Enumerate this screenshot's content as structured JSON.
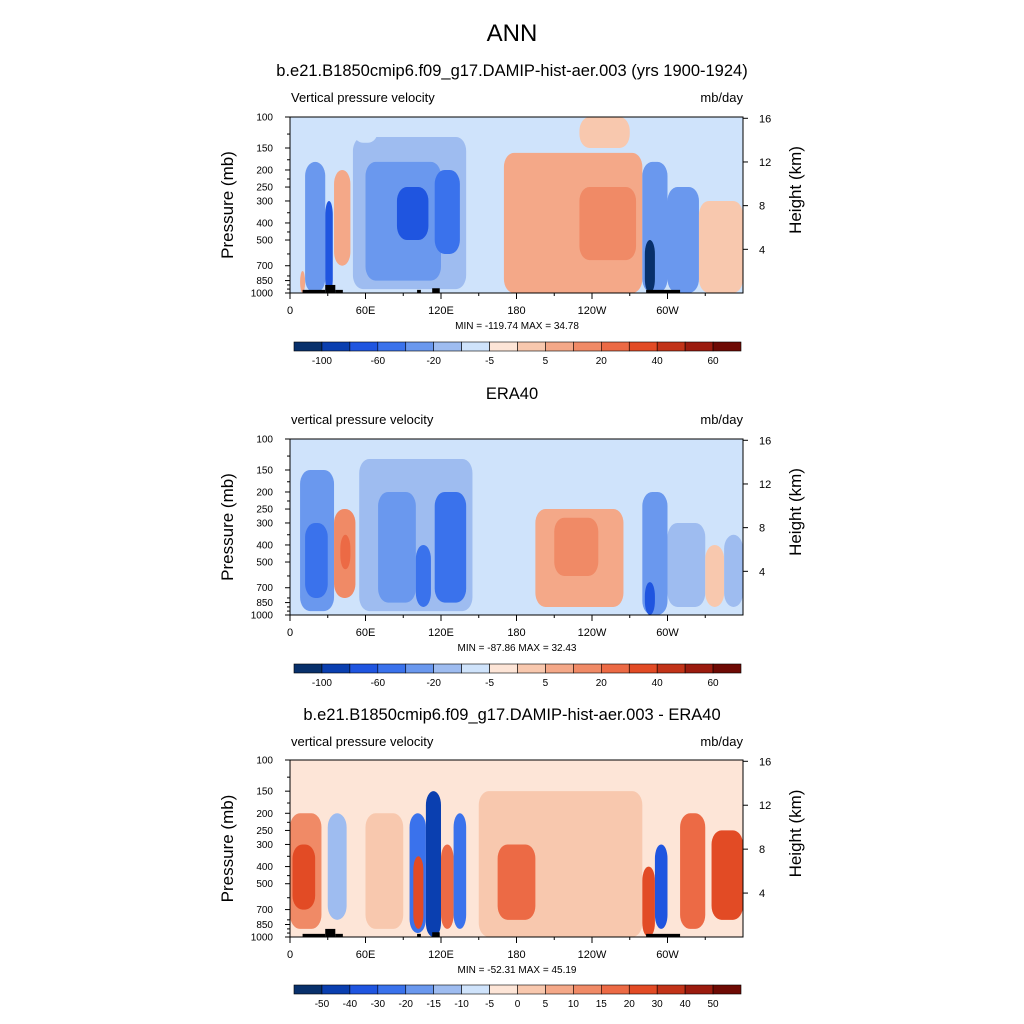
{
  "title": "ANN",
  "colors": {
    "negative": [
      "#08306b",
      "#0a3fb0",
      "#1f55e0",
      "#3a72ec",
      "#6a98ee",
      "#9ebcf0",
      "#cfe3fb"
    ],
    "positive": [
      "#fde5d7",
      "#f8c8ae",
      "#f4a888",
      "#f08a66",
      "#ec6a45",
      "#e24b25",
      "#c23318",
      "#9b1b0e",
      "#6e0a04"
    ],
    "land": "#000000"
  },
  "chart_data": [
    {
      "type": "heatmap",
      "name": "model",
      "title": "b.e21.B1850cmip6.f09_g17.DAMIP-hist-aer.003 (yrs 1900-1924)",
      "variable_label": "Vertical pressure velocity",
      "units": "mb/day",
      "ylabel": "Pressure (mb)",
      "ylabel_right": "Height (km)",
      "x_ticks": [
        "0",
        "60E",
        "120E",
        "180",
        "120W",
        "60W"
      ],
      "y_ticks": [
        "100",
        "150",
        "200",
        "250",
        "300",
        "400",
        "500",
        "700",
        "850",
        "1000"
      ],
      "height_ticks": [
        "4",
        "8",
        "12",
        "16"
      ],
      "xlim_deg": [
        0,
        360
      ],
      "ylim_mb": [
        1000,
        100
      ],
      "min": -119.74,
      "max": 34.78,
      "min_max_text": "MIN = -119.74  MAX =  34.78",
      "colorbar_labels": [
        "-100",
        "-60",
        "-20",
        "-5",
        "5",
        "20",
        "40",
        "60"
      ],
      "features": [
        {
          "lon": [
            8,
            12
          ],
          "p": [
            750,
            1000
          ],
          "value": 10
        },
        {
          "lon": [
            12,
            28
          ],
          "p": [
            180,
            1000
          ],
          "value": -30
        },
        {
          "lon": [
            28,
            34
          ],
          "p": [
            300,
            1000
          ],
          "value": -60
        },
        {
          "lon": [
            35,
            48
          ],
          "p": [
            200,
            700
          ],
          "value": 8
        },
        {
          "lon": [
            50,
            140
          ],
          "p": [
            130,
            950
          ],
          "value": -15
        },
        {
          "lon": [
            60,
            120
          ],
          "p": [
            180,
            850
          ],
          "value": -30
        },
        {
          "lon": [
            85,
            110
          ],
          "p": [
            250,
            500
          ],
          "value": -60
        },
        {
          "lon": [
            115,
            135
          ],
          "p": [
            200,
            600
          ],
          "value": -50
        },
        {
          "lon": [
            170,
            280
          ],
          "p": [
            160,
            1000
          ],
          "value": 10
        },
        {
          "lon": [
            230,
            275
          ],
          "p": [
            250,
            650
          ],
          "value": 20
        },
        {
          "lon": [
            280,
            300
          ],
          "p": [
            180,
            1000
          ],
          "value": -30
        },
        {
          "lon": [
            282,
            290
          ],
          "p": [
            500,
            1000
          ],
          "value": -100
        },
        {
          "lon": [
            300,
            325
          ],
          "p": [
            250,
            1000
          ],
          "value": -20
        },
        {
          "lon": [
            325,
            360
          ],
          "p": [
            300,
            1000
          ],
          "value": 5
        },
        {
          "lon": [
            50,
            70
          ],
          "p": [
            100,
            140
          ],
          "value": -5
        },
        {
          "lon": [
            230,
            270
          ],
          "p": [
            100,
            150
          ],
          "value": 5
        }
      ],
      "land": [
        [
          10,
          28,
          960,
          1000
        ],
        [
          28,
          36,
          900,
          1000
        ],
        [
          36,
          42,
          960,
          1000
        ],
        [
          101,
          104,
          960,
          1000
        ],
        [
          113,
          119,
          940,
          1000
        ],
        [
          283,
          310,
          960,
          1000
        ]
      ]
    },
    {
      "type": "heatmap",
      "name": "obs",
      "title": "ERA40",
      "variable_label": "vertical pressure velocity",
      "units": "mb/day",
      "ylabel": "Pressure (mb)",
      "ylabel_right": "Height (km)",
      "x_ticks": [
        "0",
        "60E",
        "120E",
        "180",
        "120W",
        "60W"
      ],
      "y_ticks": [
        "100",
        "150",
        "200",
        "250",
        "300",
        "400",
        "500",
        "700",
        "850",
        "1000"
      ],
      "height_ticks": [
        "4",
        "8",
        "12",
        "16"
      ],
      "xlim_deg": [
        0,
        360
      ],
      "ylim_mb": [
        1000,
        100
      ],
      "min": -87.86,
      "max": 32.43,
      "min_max_text": "MIN = -87.86  MAX =  32.43",
      "colorbar_labels": [
        "-100",
        "-60",
        "-20",
        "-5",
        "5",
        "20",
        "40",
        "60"
      ],
      "features": [
        {
          "lon": [
            8,
            35
          ],
          "p": [
            150,
            950
          ],
          "value": -20
        },
        {
          "lon": [
            12,
            30
          ],
          "p": [
            300,
            800
          ],
          "value": -40
        },
        {
          "lon": [
            35,
            52
          ],
          "p": [
            250,
            800
          ],
          "value": 15
        },
        {
          "lon": [
            40,
            48
          ],
          "p": [
            350,
            550
          ],
          "value": 25
        },
        {
          "lon": [
            55,
            145
          ],
          "p": [
            130,
            950
          ],
          "value": -15
        },
        {
          "lon": [
            70,
            100
          ],
          "p": [
            200,
            850
          ],
          "value": -30
        },
        {
          "lon": [
            115,
            140
          ],
          "p": [
            200,
            850
          ],
          "value": -40
        },
        {
          "lon": [
            100,
            112
          ],
          "p": [
            400,
            900
          ],
          "value": -50
        },
        {
          "lon": [
            195,
            265
          ],
          "p": [
            250,
            900
          ],
          "value": 8
        },
        {
          "lon": [
            210,
            245
          ],
          "p": [
            280,
            600
          ],
          "value": 12
        },
        {
          "lon": [
            280,
            300
          ],
          "p": [
            200,
            1000
          ],
          "value": -20
        },
        {
          "lon": [
            282,
            290
          ],
          "p": [
            650,
            1000
          ],
          "value": -60
        },
        {
          "lon": [
            300,
            330
          ],
          "p": [
            300,
            900
          ],
          "value": -10
        },
        {
          "lon": [
            330,
            345
          ],
          "p": [
            400,
            900
          ],
          "value": 5
        },
        {
          "lon": [
            345,
            360
          ],
          "p": [
            350,
            900
          ],
          "value": -10
        }
      ],
      "land": []
    },
    {
      "type": "heatmap",
      "name": "diff",
      "title": "b.e21.B1850cmip6.f09_g17.DAMIP-hist-aer.003 - ERA40",
      "variable_label": "vertical pressure velocity",
      "units": "mb/day",
      "ylabel": "Pressure (mb)",
      "ylabel_right": "Height (km)",
      "x_ticks": [
        "0",
        "60E",
        "120E",
        "180",
        "120W",
        "60W"
      ],
      "y_ticks": [
        "100",
        "150",
        "200",
        "250",
        "300",
        "400",
        "500",
        "700",
        "850",
        "1000"
      ],
      "height_ticks": [
        "4",
        "8",
        "12",
        "16"
      ],
      "xlim_deg": [
        0,
        360
      ],
      "ylim_mb": [
        1000,
        100
      ],
      "min": -52.31,
      "max": 45.19,
      "min_max_text": "MIN = -52.31  MAX =  45.19",
      "colorbar_labels": [
        "-50",
        "-40",
        "-30",
        "-20",
        "-15",
        "-10",
        "-5",
        "0",
        "5",
        "10",
        "15",
        "20",
        "30",
        "40",
        "50"
      ],
      "features": [
        {
          "lon": [
            0,
            25
          ],
          "p": [
            200,
            900
          ],
          "value": 15
        },
        {
          "lon": [
            2,
            20
          ],
          "p": [
            300,
            700
          ],
          "value": 30
        },
        {
          "lon": [
            30,
            45
          ],
          "p": [
            200,
            800
          ],
          "value": -10
        },
        {
          "lon": [
            60,
            90
          ],
          "p": [
            200,
            900
          ],
          "value": 5
        },
        {
          "lon": [
            95,
            108
          ],
          "p": [
            200,
            950
          ],
          "value": -20
        },
        {
          "lon": [
            98,
            106
          ],
          "p": [
            350,
            900
          ],
          "value": 30
        },
        {
          "lon": [
            108,
            120
          ],
          "p": [
            150,
            1000
          ],
          "value": -40
        },
        {
          "lon": [
            120,
            130
          ],
          "p": [
            300,
            900
          ],
          "value": 20
        },
        {
          "lon": [
            130,
            140
          ],
          "p": [
            200,
            900
          ],
          "value": -20
        },
        {
          "lon": [
            150,
            280
          ],
          "p": [
            150,
            1000
          ],
          "value": 5
        },
        {
          "lon": [
            165,
            195
          ],
          "p": [
            300,
            800
          ],
          "value": 20
        },
        {
          "lon": [
            280,
            290
          ],
          "p": [
            400,
            1000
          ],
          "value": 30
        },
        {
          "lon": [
            290,
            300
          ],
          "p": [
            300,
            900
          ],
          "value": -30
        },
        {
          "lon": [
            310,
            330
          ],
          "p": [
            200,
            900
          ],
          "value": 20
        },
        {
          "lon": [
            335,
            360
          ],
          "p": [
            250,
            800
          ],
          "value": 25
        }
      ],
      "land": [
        [
          10,
          28,
          960,
          1000
        ],
        [
          28,
          36,
          900,
          1000
        ],
        [
          36,
          42,
          960,
          1000
        ],
        [
          101,
          104,
          960,
          1000
        ],
        [
          113,
          119,
          940,
          1000
        ],
        [
          283,
          310,
          960,
          1000
        ]
      ]
    }
  ]
}
